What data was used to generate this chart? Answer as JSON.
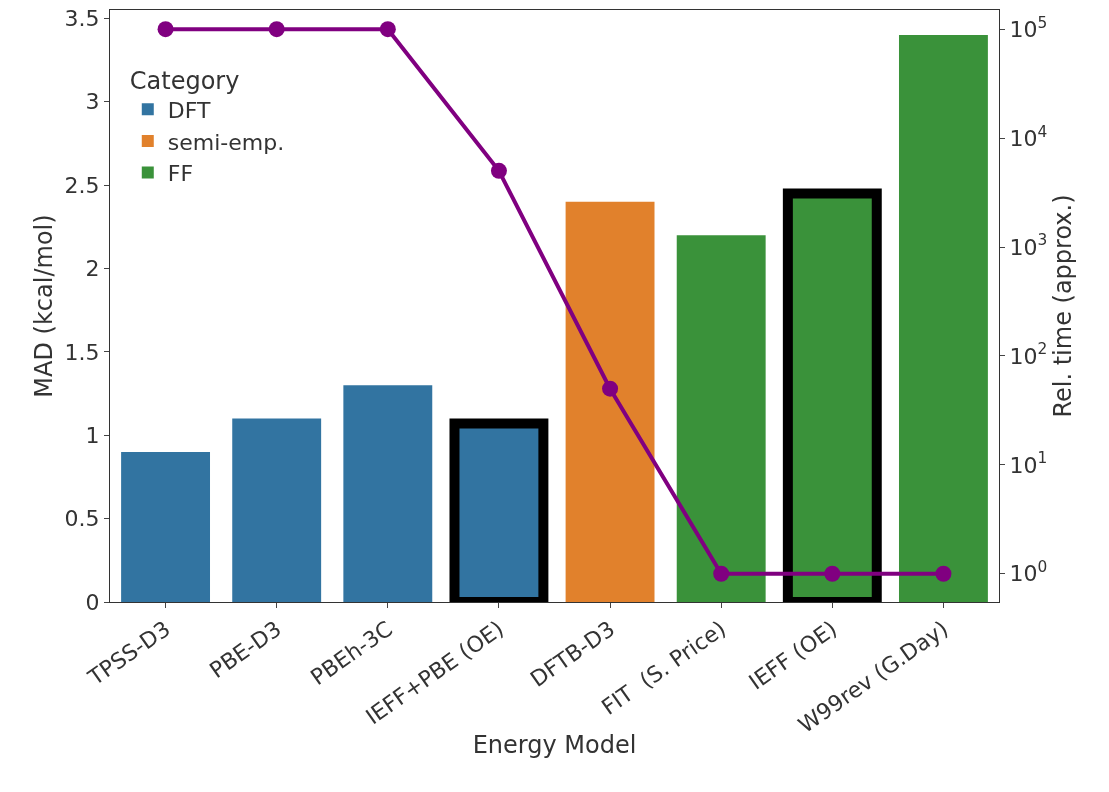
{
  "chart_data": {
    "type": "bar",
    "xlabel": "Energy Model",
    "ylabel": "MAD (kcal/mol)",
    "y2label": "Rel. time (approx.)",
    "legend_title": "Category",
    "categories": [
      "TPSS-D3",
      "PBE-D3",
      "PBEh-3C",
      "IEFF+PBE (OE)",
      "DFTB-D3",
      "FIT  (S. Price)",
      "IEFF (OE)",
      "W99rev (G.Day)"
    ],
    "series": [
      {
        "name": "DFT",
        "color": "#3274a1",
        "values": [
          0.9,
          1.1,
          1.3,
          1.07,
          null,
          null,
          null,
          null
        ]
      },
      {
        "name": "semi-emp.",
        "color": "#e1812c",
        "values": [
          null,
          null,
          null,
          null,
          2.4,
          null,
          null,
          null
        ]
      },
      {
        "name": "FF",
        "color": "#3a923a",
        "values": [
          null,
          null,
          null,
          null,
          null,
          2.2,
          2.45,
          3.4
        ]
      },
      {
        "type": "line",
        "axis": "y2",
        "color": "#800080",
        "marker": "circle",
        "values": [
          100000,
          100000,
          100000,
          5000,
          50,
          1,
          1,
          1
        ]
      }
    ],
    "ylim": [
      0,
      3.55
    ],
    "yticks": [
      0,
      0.5,
      1,
      1.5,
      2,
      2.5,
      3,
      3.5
    ],
    "log": "y2",
    "y2lim": [
      0.55,
      150000
    ],
    "y2ticks": [
      {
        "value": 1,
        "label": "10$^{0}$"
      },
      {
        "value": 10,
        "label": "10$^{1}$"
      },
      {
        "value": 100,
        "label": "10$^{2}$"
      },
      {
        "value": 1000,
        "label": "10$^{3}$"
      },
      {
        "value": 10000,
        "label": "10$^{4}$"
      },
      {
        "value": 100000,
        "label": "10$^{5}$"
      }
    ],
    "grid": false,
    "legend": "top left"
  }
}
